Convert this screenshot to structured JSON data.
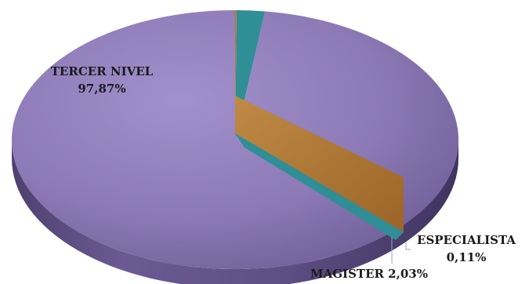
{
  "chart_data": {
    "type": "pie",
    "title": "",
    "style": "3d",
    "slices": [
      {
        "label": "TERCER NIVEL",
        "value": 97.87,
        "value_text": "97,87%",
        "color": "#8f7cb6"
      },
      {
        "label": "MAGISTER",
        "value": 2.03,
        "value_text": "2,03%",
        "color": "#2f8e96"
      },
      {
        "label": "ESPECIALISTA",
        "value": 0.11,
        "value_text": "0,11%",
        "color": "#b27a35"
      }
    ],
    "legend": "none"
  }
}
